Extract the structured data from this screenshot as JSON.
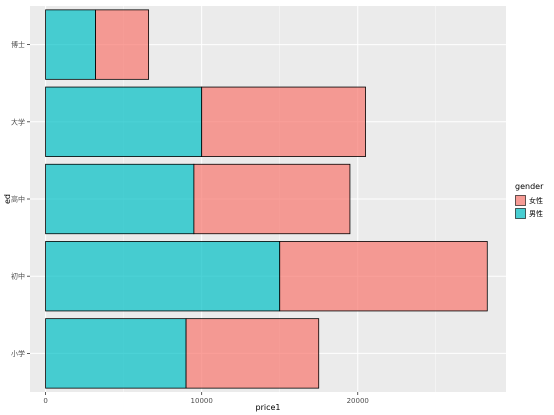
{
  "chart_data": {
    "type": "bar",
    "orientation": "horizontal",
    "stacked": true,
    "categories": [
      "小学",
      "初中",
      "高中",
      "大学",
      "博士"
    ],
    "series": [
      {
        "name": "男性",
        "color": "#00BFC4",
        "values": [
          9000,
          15000,
          9500,
          10000,
          3200
        ]
      },
      {
        "name": "女性",
        "color": "#F8766D",
        "values": [
          8500,
          13300,
          10000,
          10500,
          3400
        ]
      }
    ],
    "xlabel": "price1",
    "ylabel": "ed",
    "xlim": [
      -1000,
      29500
    ],
    "x_ticks": [
      0,
      10000,
      20000
    ],
    "x_minor_ticks": [
      5000,
      15000,
      25000
    ],
    "grid": true,
    "legend": {
      "title": "gender",
      "position": "right",
      "entries": [
        "女性",
        "男性"
      ]
    },
    "panel_background": "#EBEBEB",
    "grid_color": "#FFFFFF"
  }
}
